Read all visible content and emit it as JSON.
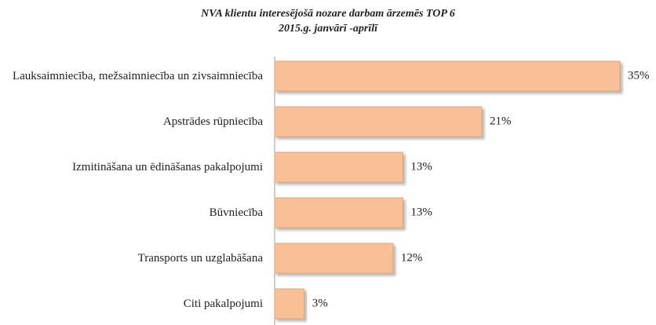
{
  "chart_data": {
    "type": "bar",
    "orientation": "horizontal",
    "title": "NVA klientu interesējošā nozare darbam ārzemēs TOP 6",
    "subtitle": "2015.g. janvārī -aprīlī",
    "categories": [
      "Lauksaimniecība, mežsaimniecība un zivsaimniecība",
      "Apstrādes rūpniecība",
      "Izmitināšana un ēdināšanas pakalpojumi",
      "Būvniecība",
      "Transports un uzglabāšana",
      "Citi pakalpojumi"
    ],
    "values": [
      35,
      21,
      13,
      13,
      12,
      3
    ],
    "value_labels": [
      "35%",
      "21%",
      "13%",
      "13%",
      "12%",
      "3%"
    ],
    "color": "#f9c097"
  }
}
